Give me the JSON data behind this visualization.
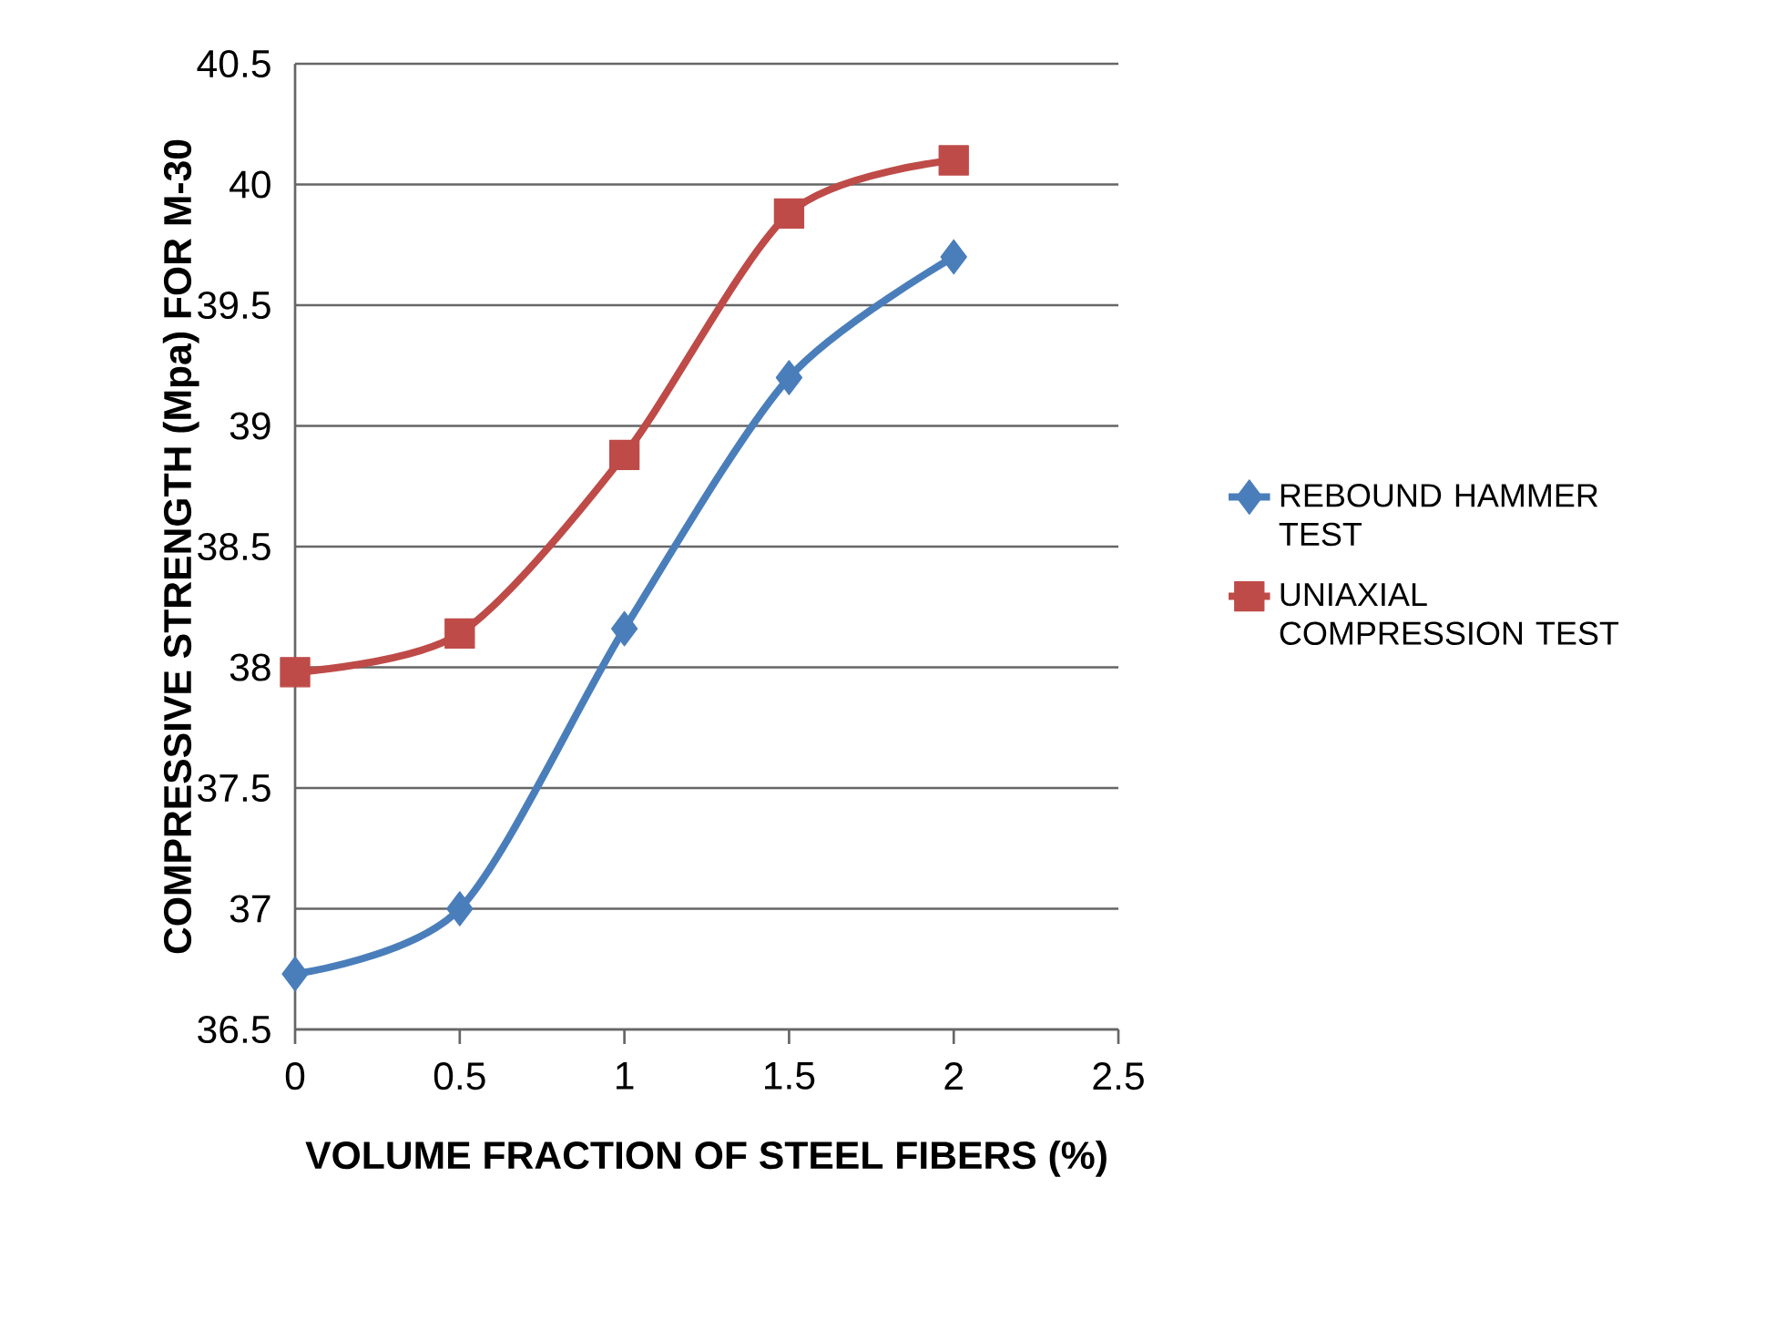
{
  "chart_data": {
    "type": "line",
    "xlabel": "VOLUME FRACTION OF STEEL FIBERS (%)",
    "ylabel": "COMPRESSIVE STRENGTH (Mpa)  FOR M-30",
    "x": [
      0,
      0.5,
      1,
      1.5,
      2
    ],
    "series": [
      {
        "name": "REBOUND HAMMER TEST",
        "color": "#4a7ebb",
        "marker": "diamond",
        "values": [
          36.73,
          37.0,
          38.16,
          39.2,
          39.7
        ]
      },
      {
        "name": "UNIAXIAL COMPRESSION TEST",
        "color": "#be4b48",
        "marker": "square",
        "values": [
          37.98,
          38.14,
          38.88,
          39.88,
          40.1
        ]
      }
    ],
    "xlim": [
      0,
      2.5
    ],
    "xticks": [
      0,
      0.5,
      1,
      1.5,
      2,
      2.5
    ],
    "ylim": [
      36.5,
      40.5
    ],
    "yticks": [
      36.5,
      37,
      37.5,
      38,
      38.5,
      39,
      39.5,
      40,
      40.5
    ],
    "grid": "y",
    "legend": "right",
    "line_style": "solid"
  }
}
